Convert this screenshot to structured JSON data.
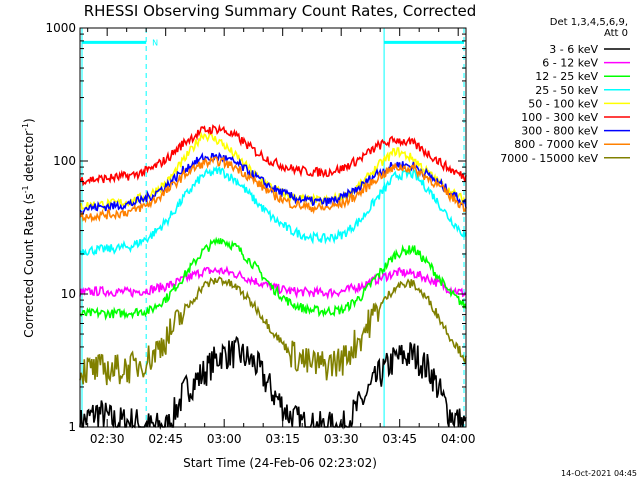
{
  "chart_data": {
    "type": "line",
    "title": "RHESSI Observing Summary Count Rates, Corrected",
    "xlabel": "Start Time (24-Feb-06 02:23:02)",
    "ylabel_prefix": "Corrected Count Rate (s",
    "ylabel_sup1": "-1",
    "ylabel_mid": " detector",
    "ylabel_sup2": "-1",
    "ylabel_suffix": ")",
    "yscale": "log",
    "ylim": [
      1,
      1000
    ],
    "xlim": [
      "02:23:02",
      "04:02:00"
    ],
    "x_ticks": [
      "02:30",
      "02:45",
      "03:00",
      "03:15",
      "03:30",
      "03:45",
      "04:00"
    ],
    "y_ticks": [
      "1",
      "10",
      "100",
      "1000"
    ],
    "legend_header": [
      "Det 1,3,4,5,6,9,",
      "Att 0"
    ],
    "legend_placement": "right",
    "footer": "14-Oct-2021 04:45",
    "flag_label": "N",
    "markers": {
      "night_end": "02:40",
      "night_start": "03:41",
      "bar_top": 780
    },
    "series": [
      {
        "name": "3 - 6 keV",
        "color": "#000000",
        "values": [
          1.05,
          1.3,
          1.1,
          1.1,
          1.0,
          1.0,
          1.9,
          2.5,
          3.5,
          3.6,
          3.0,
          1.8,
          1.2,
          1.0,
          1.0,
          1.0,
          1.5,
          2.4,
          3.3,
          3.5,
          2.6,
          1.3,
          1.0
        ]
      },
      {
        "name": "6 - 12 keV",
        "color": "#ff00ff",
        "values": [
          10.2,
          10.5,
          10.4,
          10.3,
          10.8,
          11.5,
          13,
          14.8,
          15,
          14,
          12.5,
          11.2,
          10.5,
          10.3,
          10.2,
          10.5,
          11.5,
          13,
          14.5,
          14.3,
          12.8,
          11,
          10
        ]
      },
      {
        "name": "12 - 25 keV",
        "color": "#00ff00",
        "values": [
          7,
          7.2,
          7.1,
          7.3,
          7.5,
          9.5,
          14,
          21,
          26,
          22,
          16,
          11,
          8.5,
          7.6,
          7.4,
          7.6,
          9.5,
          14,
          20,
          22,
          16,
          10.5,
          8
        ]
      },
      {
        "name": "25 - 50 keV",
        "color": "#00ffff",
        "values": [
          21,
          21.5,
          22,
          23,
          27,
          36,
          55,
          78,
          85,
          70,
          50,
          37,
          30,
          27,
          26,
          28,
          36,
          54,
          78,
          80,
          58,
          38,
          27
        ]
      },
      {
        "name": "50 - 100 keV",
        "color": "#ffff00",
        "values": [
          46,
          47,
          48,
          50,
          56,
          70,
          105,
          160,
          140,
          105,
          78,
          62,
          54,
          51,
          50,
          54,
          66,
          92,
          120,
          104,
          78,
          60,
          50
        ]
      },
      {
        "name": "100 - 300 keV",
        "color": "#ff0000",
        "values": [
          72,
          73,
          75,
          78,
          86,
          105,
          140,
          170,
          175,
          150,
          118,
          98,
          88,
          83,
          82,
          88,
          105,
          130,
          145,
          135,
          110,
          88,
          75
        ]
      },
      {
        "name": "300 - 800 keV",
        "color": "#0000ff",
        "values": [
          44,
          45,
          46,
          48,
          54,
          66,
          88,
          105,
          108,
          95,
          76,
          62,
          54,
          50,
          49,
          53,
          64,
          82,
          94,
          92,
          76,
          60,
          47
        ]
      },
      {
        "name": "800 - 7000 keV",
        "color": "#ff8000",
        "values": [
          38,
          39,
          40,
          42,
          48,
          60,
          80,
          96,
          100,
          88,
          70,
          56,
          48,
          45,
          44,
          48,
          58,
          76,
          90,
          88,
          72,
          56,
          44
        ]
      },
      {
        "name": "7000 - 15000 keV",
        "color": "#808000",
        "values": [
          2.7,
          2.7,
          2.7,
          2.8,
          3.3,
          4.8,
          7.5,
          11.5,
          13,
          11,
          8,
          5.2,
          3.6,
          3.0,
          2.9,
          3.2,
          4.8,
          7.8,
          11.5,
          12,
          8.5,
          5,
          3.2
        ]
      }
    ]
  }
}
